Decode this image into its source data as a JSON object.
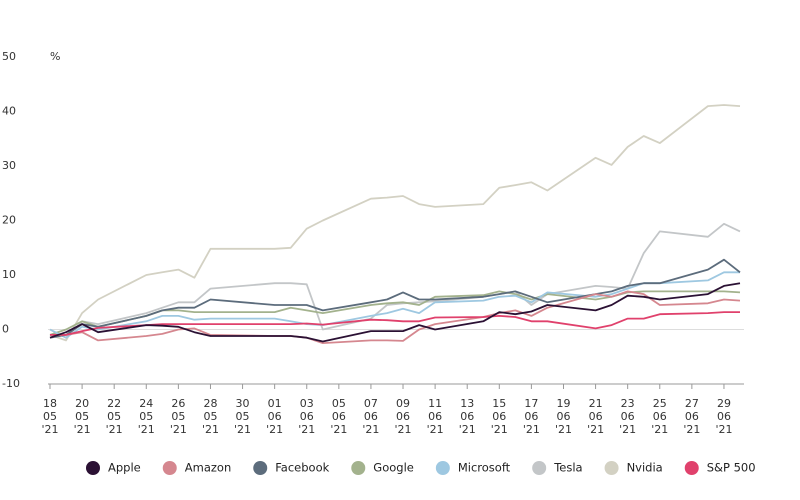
{
  "chart_data": {
    "type": "line",
    "y_unit": "%",
    "ylim": [
      -10,
      50
    ],
    "yticks": [
      -10,
      0,
      10,
      20,
      30,
      40,
      50
    ],
    "xlim": [
      "2021-05-18",
      "2021-06-30"
    ],
    "xticks": [
      {
        "value": "2021-05-18",
        "label": [
          "18",
          "05",
          "'21"
        ]
      },
      {
        "value": "2021-05-20",
        "label": [
          "20",
          "05",
          "'21"
        ]
      },
      {
        "value": "2021-05-22",
        "label": [
          "22",
          "05",
          "'21"
        ]
      },
      {
        "value": "2021-05-24",
        "label": [
          "24",
          "05",
          "'21"
        ]
      },
      {
        "value": "2021-05-26",
        "label": [
          "26",
          "05",
          "'21"
        ]
      },
      {
        "value": "2021-05-28",
        "label": [
          "28",
          "05",
          "'21"
        ]
      },
      {
        "value": "2021-05-30",
        "label": [
          "30",
          "05",
          "'21"
        ]
      },
      {
        "value": "2021-06-01",
        "label": [
          "01",
          "06",
          "'21"
        ]
      },
      {
        "value": "2021-06-03",
        "label": [
          "03",
          "06",
          "'21"
        ]
      },
      {
        "value": "2021-06-05",
        "label": [
          "05",
          "06",
          "'21"
        ]
      },
      {
        "value": "2021-06-07",
        "label": [
          "07",
          "06",
          "'21"
        ]
      },
      {
        "value": "2021-06-09",
        "label": [
          "09",
          "06",
          "'21"
        ]
      },
      {
        "value": "2021-06-11",
        "label": [
          "11",
          "06",
          "'21"
        ]
      },
      {
        "value": "2021-06-13",
        "label": [
          "13",
          "06",
          "'21"
        ]
      },
      {
        "value": "2021-06-15",
        "label": [
          "15",
          "06",
          "'21"
        ]
      },
      {
        "value": "2021-06-17",
        "label": [
          "17",
          "06",
          "'21"
        ]
      },
      {
        "value": "2021-06-19",
        "label": [
          "19",
          "06",
          "'21"
        ]
      },
      {
        "value": "2021-06-21",
        "label": [
          "21",
          "06",
          "'21"
        ]
      },
      {
        "value": "2021-06-23",
        "label": [
          "23",
          "06",
          "'21"
        ]
      },
      {
        "value": "2021-06-25",
        "label": [
          "25",
          "06",
          "'21"
        ]
      },
      {
        "value": "2021-06-27",
        "label": [
          "27",
          "06",
          "'21"
        ]
      },
      {
        "value": "2021-06-29",
        "label": [
          "29",
          "06",
          "'21"
        ]
      }
    ],
    "x": [
      "2021-05-18",
      "2021-05-19",
      "2021-05-20",
      "2021-05-21",
      "2021-05-24",
      "2021-05-25",
      "2021-05-26",
      "2021-05-27",
      "2021-05-28",
      "2021-06-01",
      "2021-06-02",
      "2021-06-03",
      "2021-06-04",
      "2021-06-07",
      "2021-06-08",
      "2021-06-09",
      "2021-06-10",
      "2021-06-11",
      "2021-06-14",
      "2021-06-15",
      "2021-06-16",
      "2021-06-17",
      "2021-06-18",
      "2021-06-21",
      "2021-06-22",
      "2021-06-23",
      "2021-06-24",
      "2021-06-25",
      "2021-06-28",
      "2021-06-29",
      "2021-06-30"
    ],
    "series": [
      {
        "name": "Nvidia",
        "color": "#d3d1c3",
        "values": [
          -1,
          -2,
          3,
          5.5,
          10,
          10.5,
          11,
          9.5,
          14.8,
          14.8,
          15,
          18.5,
          20,
          24,
          24.2,
          24.5,
          23,
          22.5,
          23,
          26,
          26.5,
          27,
          25.5,
          31.5,
          30.2,
          33.5,
          35.5,
          34.2,
          41,
          41.2,
          41
        ]
      },
      {
        "name": "Tesla",
        "color": "#c3c6c8",
        "values": [
          0,
          -1.5,
          1.5,
          1,
          3,
          4,
          5,
          5,
          7.5,
          8.5,
          8.5,
          8.3,
          0,
          2,
          4.5,
          4.8,
          5,
          5.2,
          6,
          6.5,
          7,
          4.5,
          6.5,
          8,
          7.8,
          7.5,
          14,
          18,
          17,
          19.4,
          18
        ]
      },
      {
        "name": "Google",
        "color": "#a3b28d",
        "values": [
          -1,
          0,
          1.5,
          0.5,
          2.5,
          3.5,
          3.5,
          3.2,
          3.2,
          3.2,
          4,
          3.5,
          3,
          4.5,
          4.8,
          5,
          4.5,
          6,
          6.3,
          7,
          6.5,
          5.5,
          6.5,
          5.5,
          6,
          6.8,
          7,
          7,
          7,
          7,
          6.8
        ]
      },
      {
        "name": "Microsoft",
        "color": "#9ec8e1",
        "values": [
          0,
          -1.5,
          0.5,
          0,
          1.5,
          2.5,
          2.5,
          1.8,
          2,
          2,
          1.5,
          1,
          0.8,
          2.5,
          3,
          3.8,
          3,
          5,
          5.3,
          6,
          6.2,
          5,
          6.8,
          6,
          6.5,
          7.5,
          8.5,
          8.5,
          9,
          10.5,
          10.5
        ]
      },
      {
        "name": "Facebook",
        "color": "#5c6c7c",
        "values": [
          -1.5,
          -1,
          1,
          0.5,
          2.5,
          3.5,
          4,
          4,
          5.5,
          4.5,
          4.5,
          4.5,
          3.5,
          5,
          5.5,
          6.8,
          5.5,
          5.5,
          6,
          6.5,
          7,
          6,
          5,
          6.5,
          7,
          8,
          8.5,
          8.5,
          11,
          12.8,
          10.5
        ]
      },
      {
        "name": "Amazon",
        "color": "#d5878f",
        "values": [
          -1,
          -1,
          -0.5,
          -2,
          -1.2,
          -0.8,
          0,
          0.2,
          -1,
          -1.2,
          -1.2,
          -1.5,
          -2.5,
          -2,
          -2,
          -2.1,
          0,
          1,
          2.3,
          3,
          3.5,
          2.5,
          4,
          6.5,
          6,
          7,
          6.5,
          4.5,
          4.8,
          5.5,
          5.3
        ]
      },
      {
        "name": "S&P 500",
        "color": "#e0416c",
        "values": [
          -1,
          -1,
          -0.3,
          0.3,
          0.8,
          1,
          1,
          1,
          1,
          1,
          1,
          1.1,
          0.9,
          1.8,
          1.7,
          1.5,
          1.5,
          2.2,
          2.3,
          2.5,
          2.3,
          1.5,
          1.5,
          0.2,
          0.8,
          2,
          2,
          2.8,
          3,
          3.2,
          3.2
        ]
      },
      {
        "name": "Apple",
        "color": "#2b1134",
        "values": [
          -1.5,
          -0.5,
          1,
          -0.5,
          0.8,
          0.7,
          0.5,
          -0.5,
          -1.2,
          -1.2,
          -1.2,
          -1.5,
          -2.2,
          -0.3,
          -0.3,
          -0.3,
          0.8,
          0,
          1.5,
          3.2,
          2.8,
          3.3,
          4.5,
          3.5,
          4.5,
          6.2,
          6,
          5.5,
          6.5,
          8,
          8.5
        ]
      }
    ],
    "legend_order": [
      "Apple",
      "Amazon",
      "Facebook",
      "Google",
      "Microsoft",
      "Tesla",
      "Nvidia",
      "S&P 500"
    ]
  }
}
